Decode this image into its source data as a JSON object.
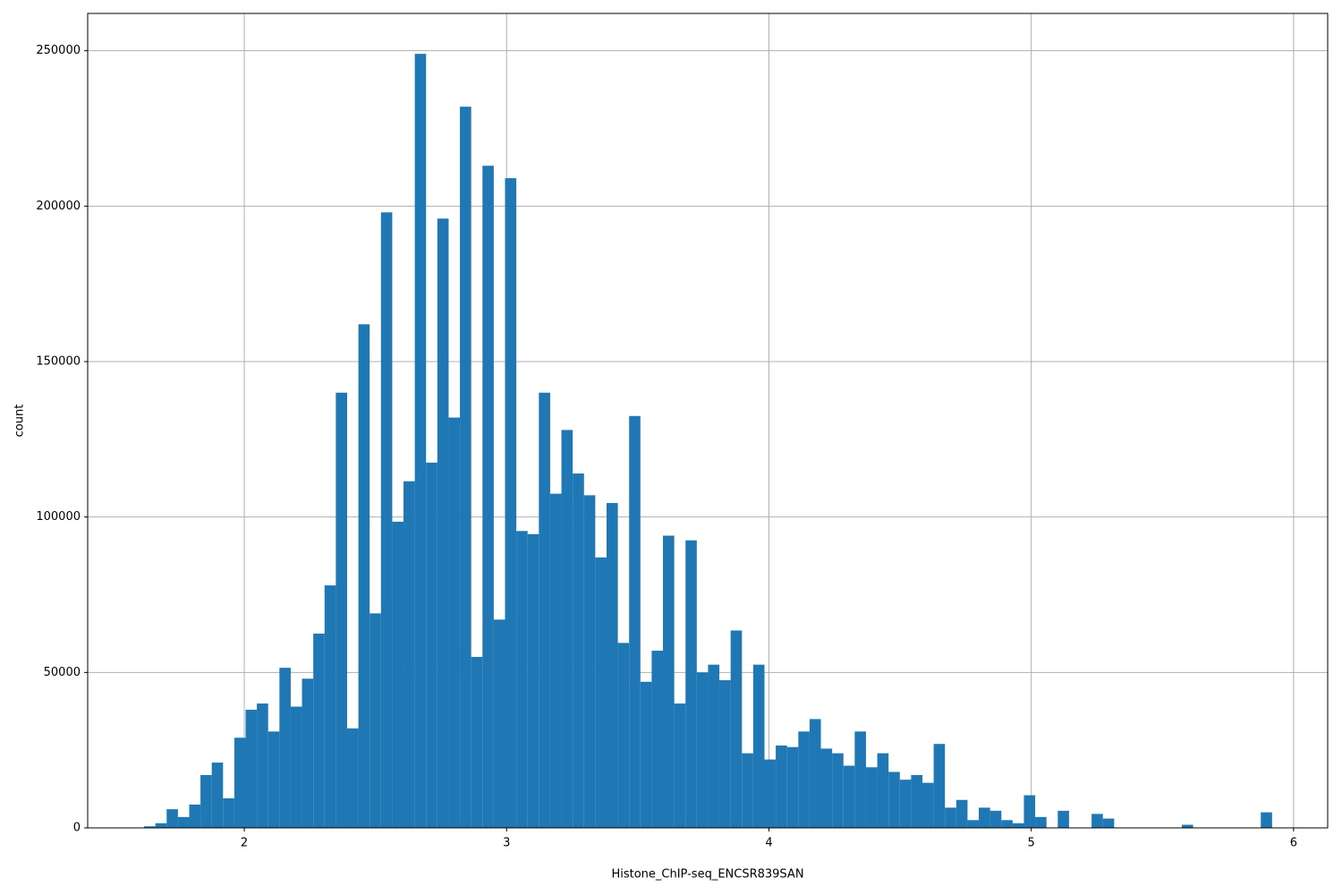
{
  "chart_data": {
    "type": "histogram",
    "x_label": "Histone_ChIP-seq_ENCSR839SAN",
    "y_label": "count",
    "color": "#1f77b4",
    "grid": true,
    "xlim": [
      1.403,
      6.13
    ],
    "xticks": [
      2,
      3,
      4,
      5,
      6
    ],
    "ylim": [
      0,
      262000
    ],
    "yticks": [
      0,
      50000,
      100000,
      150000,
      200000,
      250000
    ],
    "bins": [
      1.618,
      1.661,
      1.704,
      1.747,
      1.79,
      1.833,
      1.876,
      1.919,
      1.962,
      2.005,
      2.048,
      2.091,
      2.134,
      2.177,
      2.22,
      2.263,
      2.306,
      2.349,
      2.392,
      2.435,
      2.478,
      2.521,
      2.564,
      2.607,
      2.65,
      2.693,
      2.736,
      2.779,
      2.822,
      2.865,
      2.908,
      2.951,
      2.994,
      3.037,
      3.08,
      3.123,
      3.166,
      3.209,
      3.252,
      3.295,
      3.338,
      3.381,
      3.424,
      3.467,
      3.51,
      3.553,
      3.596,
      3.639,
      3.682,
      3.725,
      3.768,
      3.811,
      3.854,
      3.897,
      3.94,
      3.983,
      4.026,
      4.069,
      4.112,
      4.155,
      4.198,
      4.241,
      4.284,
      4.327,
      4.37,
      4.413,
      4.456,
      4.499,
      4.542,
      4.585,
      4.628,
      4.671,
      4.714,
      4.757,
      4.8,
      4.843,
      4.886,
      4.929,
      4.972,
      5.015,
      5.058,
      5.101,
      5.144,
      5.187,
      5.23,
      5.273,
      5.316,
      5.359,
      5.402,
      5.445,
      5.488,
      5.531,
      5.574,
      5.617,
      5.66,
      5.703,
      5.746,
      5.789,
      5.832,
      5.875,
      5.918
    ],
    "values": [
      500,
      1500,
      6000,
      3500,
      7500,
      17000,
      21000,
      9500,
      29000,
      38000,
      40000,
      31000,
      51500,
      39000,
      48000,
      62500,
      78000,
      140000,
      32000,
      162000,
      69000,
      198000,
      98500,
      111500,
      249000,
      117500,
      196000,
      132000,
      232000,
      55000,
      213000,
      67000,
      209000,
      95500,
      94500,
      140000,
      107500,
      128000,
      114000,
      107000,
      87000,
      104500,
      59500,
      132500,
      47000,
      57000,
      94000,
      40000,
      92500,
      50000,
      52500,
      47500,
      63500,
      24000,
      52500,
      22000,
      26500,
      26000,
      31000,
      35000,
      25500,
      24000,
      20000,
      31000,
      19500,
      24000,
      18000,
      15500,
      17000,
      14500,
      27000,
      6500,
      9000,
      2500,
      6500,
      5500,
      2500,
      1500,
      10500,
      3500,
      0,
      5500,
      0,
      0,
      4500,
      3000,
      0,
      0,
      0,
      0,
      0,
      0,
      1000,
      0,
      0,
      0,
      0,
      0,
      0,
      5000
    ]
  }
}
